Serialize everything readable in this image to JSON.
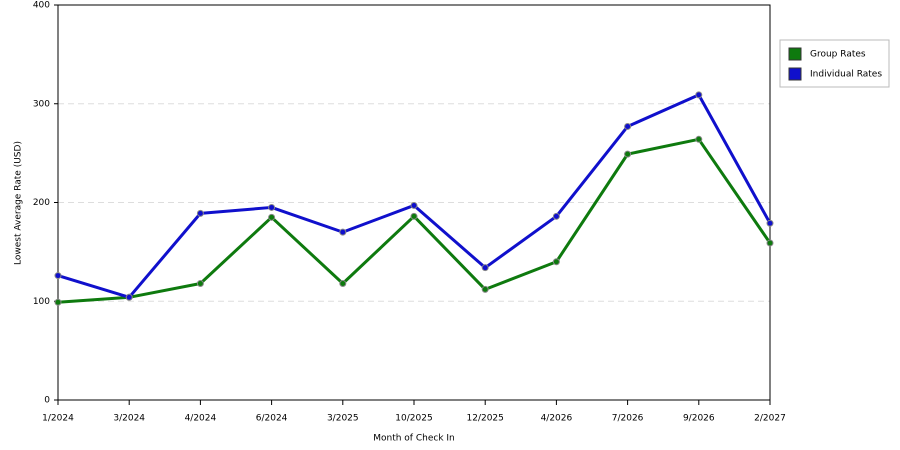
{
  "chart_data": {
    "type": "line",
    "x_label": "Month of Check In",
    "y_label": "Lowest Average Rate (USD)",
    "categories": [
      "1/2024",
      "3/2024",
      "4/2024",
      "6/2024",
      "3/2025",
      "10/2025",
      "12/2025",
      "4/2026",
      "7/2026",
      "9/2026",
      "2/2027"
    ],
    "series": [
      {
        "name": "Group Rates",
        "color": "#0e7a0e",
        "values": [
          99,
          104,
          118,
          185,
          118,
          186,
          112,
          140,
          249,
          264,
          159
        ]
      },
      {
        "name": "Individual Rates",
        "color": "#1010cc",
        "values": [
          126,
          104,
          189,
          195,
          170,
          197,
          134,
          186,
          277,
          309,
          179
        ]
      }
    ],
    "ylim": [
      0,
      400
    ],
    "yticks": [
      0,
      100,
      200,
      300,
      400
    ],
    "grid": true,
    "legend": "right"
  }
}
